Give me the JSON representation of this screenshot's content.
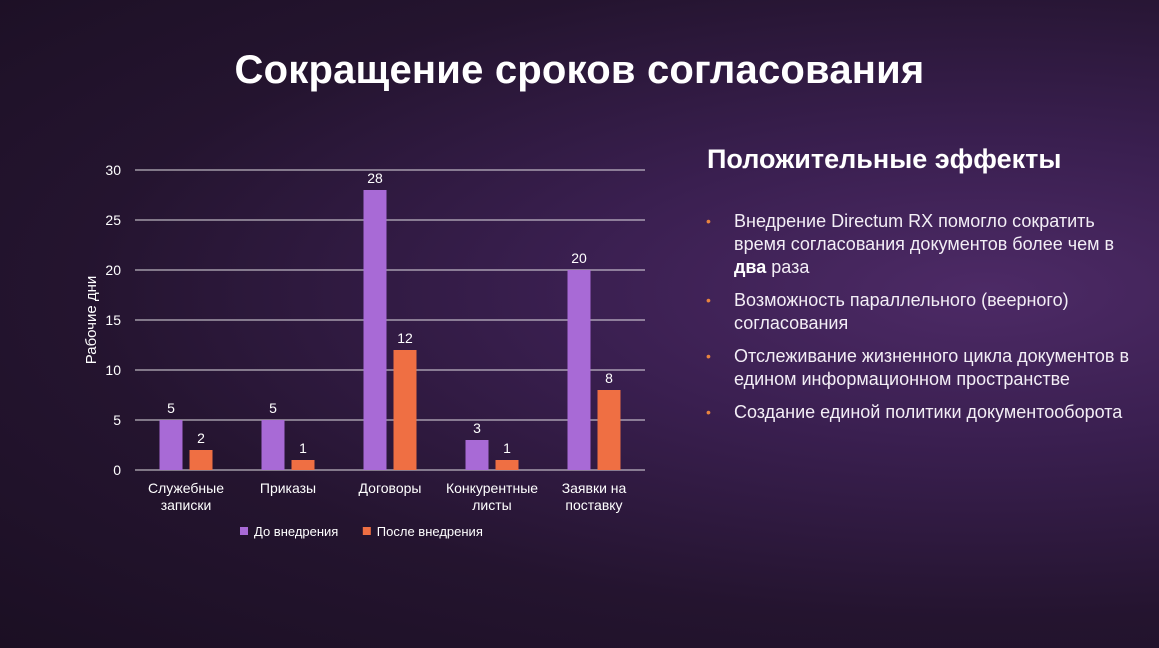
{
  "slide": {
    "title": "Сокращение сроков согласования"
  },
  "chart_data": {
    "type": "bar",
    "title": "",
    "xlabel": "",
    "ylabel": "Рабочие дни",
    "ylim": [
      0,
      30
    ],
    "yticks": [
      0,
      5,
      10,
      15,
      20,
      25,
      30
    ],
    "grid": true,
    "legend_position": "bottom",
    "categories": [
      [
        "Служебные",
        "записки"
      ],
      [
        "Приказы"
      ],
      [
        "Договоры"
      ],
      [
        "Конкурентные",
        "листы"
      ],
      [
        "Заявки на",
        "поставку"
      ]
    ],
    "series": [
      {
        "name": "До внедрения",
        "color": "#a86ad6",
        "values": [
          5,
          5,
          28,
          3,
          20
        ]
      },
      {
        "name": "После внедрения",
        "color": "#ef6f43",
        "values": [
          2,
          1,
          12,
          1,
          8
        ]
      }
    ]
  },
  "effects": {
    "title": "Положительные эффекты",
    "bullet_color": "#e8843f",
    "items": [
      {
        "before": "Внедрение Directum RX помогло сократить время согласования документов более чем в ",
        "bold": "два",
        "after": " раза"
      },
      {
        "before": "Возможность параллельного (веерного) согласования",
        "bold": "",
        "after": ""
      },
      {
        "before": "Отслеживание жизненного цикла документов в едином информационном пространстве",
        "bold": "",
        "after": ""
      },
      {
        "before": "Создание единой политики документооборота",
        "bold": "",
        "after": ""
      }
    ]
  }
}
